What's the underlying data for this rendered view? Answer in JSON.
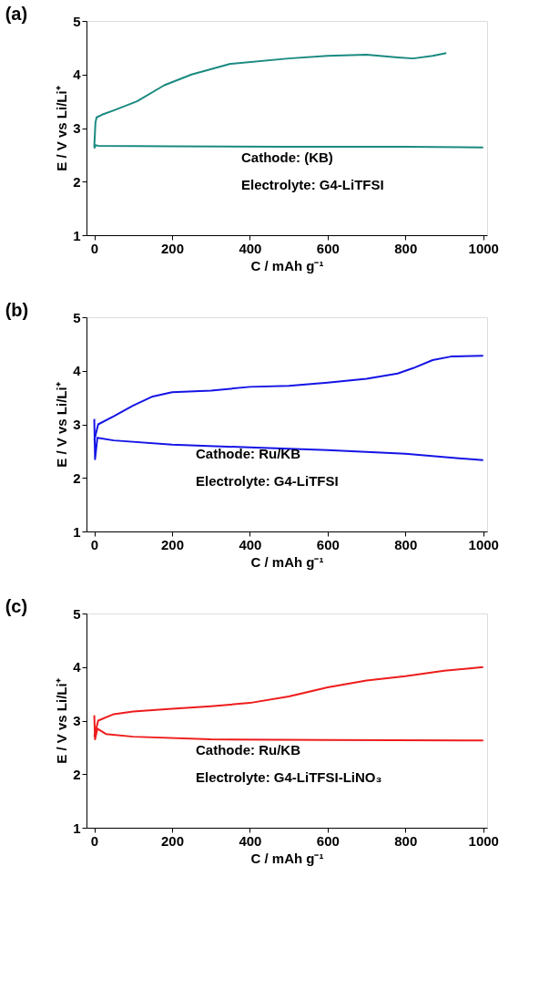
{
  "chart_data": [
    {
      "type": "line",
      "title": "(a)",
      "xlabel": "C / mAh g⁻¹",
      "ylabel": "E / V vs Li/Li⁺",
      "xlim": [
        -20,
        1010
      ],
      "ylim": [
        1,
        5
      ],
      "xticks": [
        0,
        200,
        400,
        600,
        800,
        1000
      ],
      "yticks": [
        1,
        2,
        3,
        4,
        5
      ],
      "grid": false,
      "legend": false,
      "marker": "none",
      "line_style": "solid",
      "annotations": [
        "Cathode: (KB)",
        "Electrolyte: G4-LiTFSI"
      ],
      "series": [
        {
          "color": "#1a8a80",
          "x": [
            0,
            3,
            6,
            20,
            50,
            110,
            180,
            250,
            350,
            500,
            600,
            700,
            780,
            820,
            870,
            905
          ],
          "values": [
            2.65,
            3.1,
            3.2,
            3.25,
            3.33,
            3.5,
            3.8,
            4.0,
            4.2,
            4.3,
            4.35,
            4.37,
            4.32,
            4.3,
            4.35,
            4.4
          ]
        },
        {
          "color": "#1a8a80",
          "x": [
            0,
            3,
            10,
            200,
            500,
            800,
            1000
          ],
          "values": [
            2.62,
            2.68,
            2.67,
            2.66,
            2.65,
            2.65,
            2.64
          ]
        }
      ]
    },
    {
      "type": "line",
      "title": "(b)",
      "xlabel": "C / mAh g⁻¹",
      "ylabel": "E / V vs Li/Li⁺",
      "xlim": [
        -20,
        1010
      ],
      "ylim": [
        1,
        5
      ],
      "xticks": [
        0,
        200,
        400,
        600,
        800,
        1000
      ],
      "yticks": [
        1,
        2,
        3,
        4,
        5
      ],
      "grid": false,
      "legend": false,
      "marker": "none",
      "line_style": "solid",
      "annotations": [
        "Cathode: Ru/KB",
        "Electrolyte: G4-LiTFSI"
      ],
      "series": [
        {
          "color": "#1414e6",
          "x": [
            0,
            10,
            50,
            100,
            150,
            200,
            300,
            400,
            500,
            600,
            700,
            780,
            820,
            870,
            920,
            1000
          ],
          "values": [
            2.7,
            3.0,
            3.15,
            3.35,
            3.52,
            3.6,
            3.63,
            3.7,
            3.72,
            3.78,
            3.85,
            3.95,
            4.05,
            4.2,
            4.27,
            4.28
          ]
        },
        {
          "color": "#1414e6",
          "x": [
            0,
            2,
            8,
            50,
            200,
            400,
            600,
            800,
            1000
          ],
          "values": [
            3.1,
            2.35,
            2.75,
            2.7,
            2.62,
            2.57,
            2.52,
            2.45,
            2.33
          ]
        }
      ]
    },
    {
      "type": "line",
      "title": "(c)",
      "xlabel": "C / mAh g⁻¹",
      "ylabel": "E / V vs Li/Li⁺",
      "xlim": [
        -20,
        1010
      ],
      "ylim": [
        1,
        5
      ],
      "xticks": [
        0,
        200,
        400,
        600,
        800,
        1000
      ],
      "yticks": [
        1,
        2,
        3,
        4,
        5
      ],
      "grid": false,
      "legend": false,
      "marker": "none",
      "line_style": "solid",
      "annotations": [
        "Cathode: Ru/KB",
        "Electrolyte: G4-LiTFSI-LiNO₃"
      ],
      "series": [
        {
          "color": "#ee1c1c",
          "x": [
            0,
            10,
            50,
            100,
            200,
            300,
            400,
            500,
            600,
            700,
            800,
            900,
            1000
          ],
          "values": [
            2.7,
            3.0,
            3.12,
            3.17,
            3.22,
            3.27,
            3.33,
            3.45,
            3.62,
            3.75,
            3.83,
            3.93,
            4.0
          ]
        },
        {
          "color": "#ee1c1c",
          "x": [
            0,
            2,
            8,
            30,
            100,
            300,
            600,
            1000
          ],
          "values": [
            3.1,
            2.65,
            2.85,
            2.75,
            2.7,
            2.65,
            2.64,
            2.63
          ]
        }
      ]
    }
  ]
}
